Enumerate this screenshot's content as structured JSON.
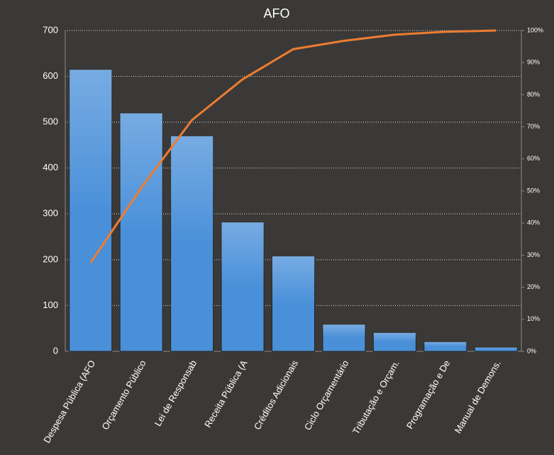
{
  "chart_data": {
    "type": "pareto",
    "title": "AFO",
    "categories": [
      "Despesa Pública (AFO",
      "Orçamento Público",
      "Lei de Responsab",
      "Receita Pública (A",
      "Créditos Adicionais",
      "Ciclo Orçamentário",
      "Tributação e Orçam.",
      "Programação e De",
      "Manual de Demons."
    ],
    "series": [
      {
        "type": "bar",
        "color": "#4a90d9",
        "values": [
          615,
          520,
          470,
          282,
          208,
          59,
          41,
          21,
          9
        ]
      },
      {
        "type": "line",
        "axis": "y2",
        "color": "#ed7d31",
        "values": [
          27.6,
          51.0,
          72.1,
          84.8,
          94.2,
          96.8,
          98.7,
          99.6,
          100
        ]
      }
    ],
    "ylim": [
      0,
      700
    ],
    "yticks": [
      0,
      100,
      200,
      300,
      400,
      500,
      600,
      700
    ],
    "y2lim": [
      0,
      100
    ],
    "y2ticks": [
      {
        "value": 0,
        "label": "0%"
      },
      {
        "value": 10,
        "label": "10%"
      },
      {
        "value": 20,
        "label": "20%"
      },
      {
        "value": 30,
        "label": "30%"
      },
      {
        "value": 40,
        "label": "40%"
      },
      {
        "value": 50,
        "label": "50%"
      },
      {
        "value": 60,
        "label": "60%"
      },
      {
        "value": 70,
        "label": "70%"
      },
      {
        "value": 80,
        "label": "80%"
      },
      {
        "value": 90,
        "label": "90%"
      },
      {
        "value": 100,
        "label": "100%"
      }
    ],
    "grid": true
  }
}
